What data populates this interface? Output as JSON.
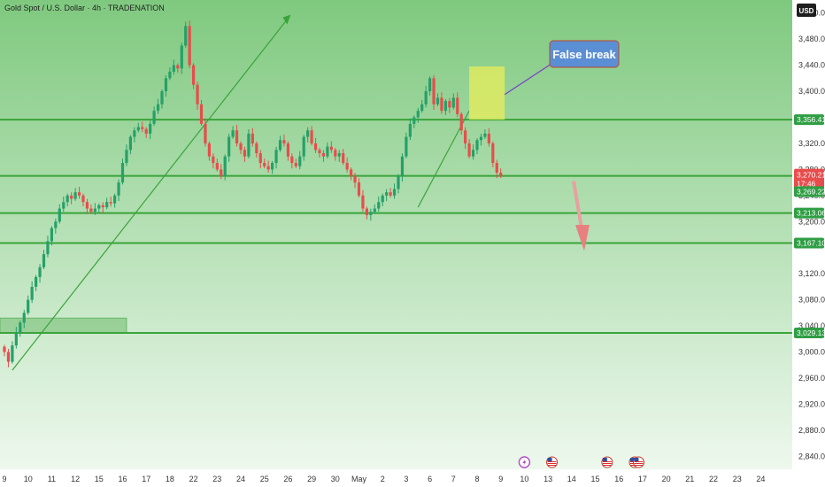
{
  "header": {
    "title": "Gold Spot / U.S. Dollar · 4h · TRADENATION",
    "currency": "USD"
  },
  "annotation": {
    "label": "False break"
  },
  "colors": {
    "bg_top": "#7fc97f",
    "bg_bottom": "#eef8ee",
    "level_line": "#3aa43a",
    "up_candle": "#26a069",
    "down_candle": "#e84c4c",
    "trend_line": "#3aa43a",
    "callout_fill": "#5b8fd4",
    "highlight_box": "#e8ee5a",
    "price_tag_red": "#e84c4c",
    "price_tag_green": "#2f9e44"
  },
  "chart_data": {
    "type": "candlestick",
    "title": "Gold Spot / U.S. Dollar · 4h · TRADENATION",
    "ylim": [
      2820,
      3540
    ],
    "y_ticks": [
      "3,520.00",
      "3,480.00",
      "3,440.00",
      "3,400.00",
      "3,320.00",
      "3,280.00",
      "3,240.00",
      "3,200.00",
      "3,120.00",
      "3,080.00",
      "3,040.00",
      "3,000.00",
      "2,960.00",
      "2,920.00",
      "2,880.00",
      "2,840.00"
    ],
    "x_ticks": [
      "9",
      "10",
      "11",
      "12",
      "15",
      "16",
      "17",
      "18",
      "22",
      "23",
      "24",
      "25",
      "26",
      "29",
      "30",
      "May",
      "2",
      "3",
      "6",
      "7",
      "8",
      "9",
      "10",
      "13",
      "14",
      "15",
      "16",
      "17",
      "20",
      "21",
      "22",
      "23",
      "24"
    ],
    "x_tick_bars": [
      0,
      6,
      12,
      18,
      24,
      30,
      36,
      42,
      48,
      54,
      60,
      66,
      72,
      78,
      84,
      90,
      96,
      102,
      108,
      114,
      120,
      126,
      132,
      138,
      144,
      150,
      156,
      162,
      168,
      174,
      180,
      186,
      192
    ],
    "levels": [
      {
        "price": 3356.41,
        "label": "3,356.41"
      },
      {
        "price": 3270.21,
        "label": "3,270.21"
      },
      {
        "price": 3213.06,
        "label": "3,213.06"
      },
      {
        "price": 3167.1,
        "label": "3,167.10"
      },
      {
        "price": 3029.13,
        "label": "3,029.13"
      }
    ],
    "current_price": {
      "value": 3270.21,
      "label": "3,270.21",
      "countdown": "17:46"
    },
    "bid_price": {
      "value": 3269.22,
      "label": "3,269.22"
    },
    "closes": [
      3000,
      2985,
      3010,
      3030,
      3045,
      3060,
      3080,
      3100,
      3115,
      3130,
      3150,
      3170,
      3190,
      3200,
      3220,
      3230,
      3240,
      3235,
      3245,
      3240,
      3230,
      3220,
      3215,
      3220,
      3225,
      3222,
      3230,
      3228,
      3240,
      3260,
      3290,
      3310,
      3330,
      3340,
      3345,
      3342,
      3335,
      3350,
      3370,
      3380,
      3400,
      3420,
      3430,
      3440,
      3435,
      3470,
      3500,
      3440,
      3410,
      3380,
      3350,
      3320,
      3300,
      3290,
      3280,
      3270,
      3300,
      3330,
      3340,
      3320,
      3310,
      3300,
      3335,
      3320,
      3305,
      3290,
      3285,
      3280,
      3290,
      3310,
      3325,
      3320,
      3300,
      3290,
      3285,
      3300,
      3330,
      3340,
      3320,
      3310,
      3305,
      3300,
      3315,
      3310,
      3300,
      3305,
      3290,
      3280,
      3270,
      3260,
      3240,
      3220,
      3210,
      3215,
      3220,
      3230,
      3240,
      3245,
      3240,
      3250,
      3270,
      3300,
      3330,
      3350,
      3360,
      3370,
      3380,
      3400,
      3420,
      3380,
      3390,
      3370,
      3385,
      3375,
      3390,
      3365,
      3340,
      3320,
      3300,
      3310,
      3325,
      3330,
      3335,
      3320,
      3290,
      3275,
      3270
    ],
    "markers": [
      {
        "bar": 132,
        "type": "lightning"
      },
      {
        "bar": 139,
        "type": "us-flag"
      },
      {
        "bar": 153,
        "type": "us-flag"
      },
      {
        "bar": 160,
        "type": "us-flag"
      },
      {
        "bar": 161,
        "type": "us-flag"
      }
    ]
  }
}
